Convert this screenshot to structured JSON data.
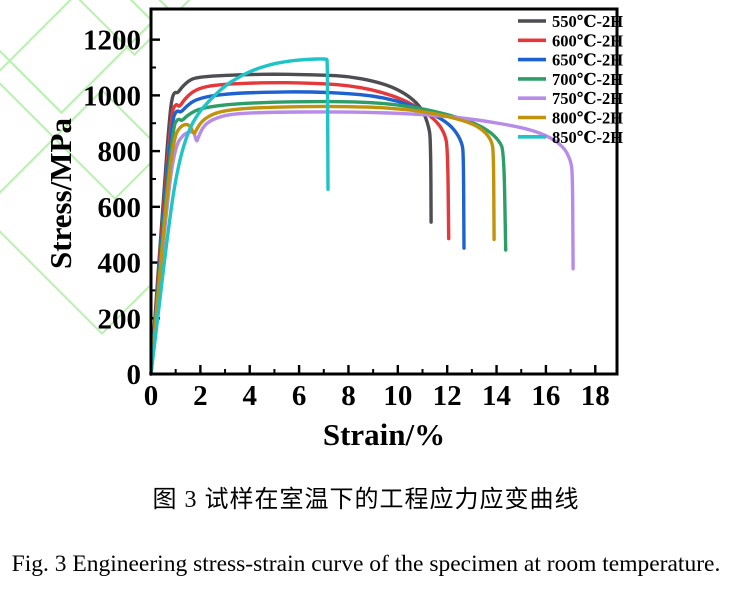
{
  "figure": {
    "captions": {
      "chinese": "图 3 试样在室温下的工程应力应变曲线",
      "english": "Fig. 3 Engineering stress-strain curve of the specimen at room temperature."
    },
    "watermark_color": "#b7f1ad"
  },
  "chart_data": {
    "type": "line",
    "title": "",
    "xlabel": "Strain/%",
    "ylabel": "Stress/MPa",
    "xlim": [
      0,
      18.88
    ],
    "ylim": [
      0,
      1310
    ],
    "x_ticks": [
      0,
      2,
      4,
      6,
      8,
      10,
      12,
      14,
      16,
      18
    ],
    "y_ticks": [
      0,
      200,
      400,
      600,
      800,
      1000,
      1200
    ],
    "grid": false,
    "tick_direction": "in",
    "legend_position": "top-right",
    "frame_color": "#000000",
    "series": [
      {
        "name": "550℃-2H",
        "color": "#4d4d52",
        "points": [
          [
            0,
            0
          ],
          [
            0.55,
            690
          ],
          [
            0.78,
            950
          ],
          [
            0.88,
            1000
          ],
          [
            0.98,
            1012
          ],
          [
            1.08,
            1008
          ],
          [
            1.25,
            1030
          ],
          [
            1.6,
            1058
          ],
          [
            2,
            1066
          ],
          [
            3,
            1072
          ],
          [
            4,
            1075
          ],
          [
            5,
            1076
          ],
          [
            6,
            1075
          ],
          [
            7,
            1073
          ],
          [
            8,
            1068
          ],
          [
            9,
            1052
          ],
          [
            9.8,
            1030
          ],
          [
            10.5,
            995
          ],
          [
            11,
            950
          ],
          [
            11.25,
            890
          ],
          [
            11.33,
            840
          ],
          [
            11.35,
            545
          ]
        ]
      },
      {
        "name": "600℃-2H",
        "color": "#e4393b",
        "points": [
          [
            0,
            0
          ],
          [
            0.6,
            700
          ],
          [
            0.85,
            940
          ],
          [
            0.95,
            962
          ],
          [
            1.05,
            968
          ],
          [
            1.15,
            958
          ],
          [
            1.35,
            985
          ],
          [
            1.7,
            1015
          ],
          [
            2.2,
            1032
          ],
          [
            3,
            1040
          ],
          [
            4,
            1044
          ],
          [
            5,
            1046
          ],
          [
            6,
            1045
          ],
          [
            7,
            1042
          ],
          [
            8,
            1035
          ],
          [
            9,
            1020
          ],
          [
            10,
            993
          ],
          [
            10.8,
            958
          ],
          [
            11.5,
            915
          ],
          [
            11.9,
            865
          ],
          [
            12.02,
            810
          ],
          [
            12.06,
            486
          ]
        ]
      },
      {
        "name": "650℃-2H",
        "color": "#1e62d0",
        "points": [
          [
            0,
            0
          ],
          [
            0.62,
            690
          ],
          [
            0.88,
            915
          ],
          [
            1.0,
            940
          ],
          [
            1.1,
            945
          ],
          [
            1.2,
            938
          ],
          [
            1.45,
            962
          ],
          [
            1.8,
            985
          ],
          [
            2.5,
            1000
          ],
          [
            3.5,
            1008
          ],
          [
            5,
            1012
          ],
          [
            6,
            1013
          ],
          [
            7,
            1011
          ],
          [
            8,
            1007
          ],
          [
            9,
            998
          ],
          [
            10,
            980
          ],
          [
            11,
            950
          ],
          [
            11.8,
            915
          ],
          [
            12.3,
            878
          ],
          [
            12.6,
            830
          ],
          [
            12.66,
            790
          ],
          [
            12.68,
            452
          ]
        ]
      },
      {
        "name": "700℃-2H",
        "color": "#2e9e69",
        "points": [
          [
            0,
            0
          ],
          [
            0.65,
            680
          ],
          [
            0.92,
            890
          ],
          [
            1.05,
            912
          ],
          [
            1.15,
            915
          ],
          [
            1.25,
            908
          ],
          [
            1.5,
            930
          ],
          [
            1.9,
            950
          ],
          [
            2.6,
            962
          ],
          [
            3.5,
            970
          ],
          [
            5,
            976
          ],
          [
            6.5,
            978
          ],
          [
            8,
            977
          ],
          [
            9,
            974
          ],
          [
            10,
            966
          ],
          [
            11,
            952
          ],
          [
            12,
            932
          ],
          [
            13,
            905
          ],
          [
            13.7,
            872
          ],
          [
            14.1,
            838
          ],
          [
            14.3,
            800
          ],
          [
            14.37,
            445
          ]
        ]
      },
      {
        "name": "750℃-2H",
        "color": "#b78bea",
        "points": [
          [
            0,
            0
          ],
          [
            0.7,
            660
          ],
          [
            1.0,
            820
          ],
          [
            1.3,
            858
          ],
          [
            1.55,
            870
          ],
          [
            1.75,
            868
          ],
          [
            1.85,
            830
          ],
          [
            1.92,
            852
          ],
          [
            2.2,
            900
          ],
          [
            2.8,
            925
          ],
          [
            3.5,
            935
          ],
          [
            5,
            940
          ],
          [
            7,
            941
          ],
          [
            9,
            939
          ],
          [
            11,
            932
          ],
          [
            13,
            916
          ],
          [
            15,
            886
          ],
          [
            16,
            858
          ],
          [
            16.7,
            818
          ],
          [
            17.0,
            768
          ],
          [
            17.08,
            720
          ],
          [
            17.1,
            378
          ]
        ]
      },
      {
        "name": "800℃-2H",
        "color": "#c1930d",
        "points": [
          [
            0,
            0
          ],
          [
            0.68,
            680
          ],
          [
            0.95,
            850
          ],
          [
            1.15,
            885
          ],
          [
            1.4,
            898
          ],
          [
            1.6,
            890
          ],
          [
            1.75,
            858
          ],
          [
            1.85,
            880
          ],
          [
            2.1,
            912
          ],
          [
            2.6,
            938
          ],
          [
            3.5,
            952
          ],
          [
            5,
            958
          ],
          [
            7,
            961
          ],
          [
            9,
            958
          ],
          [
            10,
            952
          ],
          [
            11,
            942
          ],
          [
            12,
            926
          ],
          [
            13,
            900
          ],
          [
            13.5,
            872
          ],
          [
            13.8,
            838
          ],
          [
            13.88,
            795
          ],
          [
            13.9,
            483
          ]
        ]
      },
      {
        "name": "850℃-2H",
        "color": "#1ec4c6",
        "points": [
          [
            0,
            0
          ],
          [
            0.75,
            560
          ],
          [
            1.1,
            750
          ],
          [
            1.5,
            870
          ],
          [
            1.9,
            935
          ],
          [
            2.4,
            985
          ],
          [
            3,
            1035
          ],
          [
            3.6,
            1068
          ],
          [
            4.2,
            1093
          ],
          [
            4.8,
            1110
          ],
          [
            5.4,
            1121
          ],
          [
            6,
            1127
          ],
          [
            6.5,
            1130
          ],
          [
            6.9,
            1131
          ],
          [
            7.1,
            1130
          ],
          [
            7.15,
            1128
          ],
          [
            7.17,
            663
          ]
        ]
      }
    ]
  }
}
